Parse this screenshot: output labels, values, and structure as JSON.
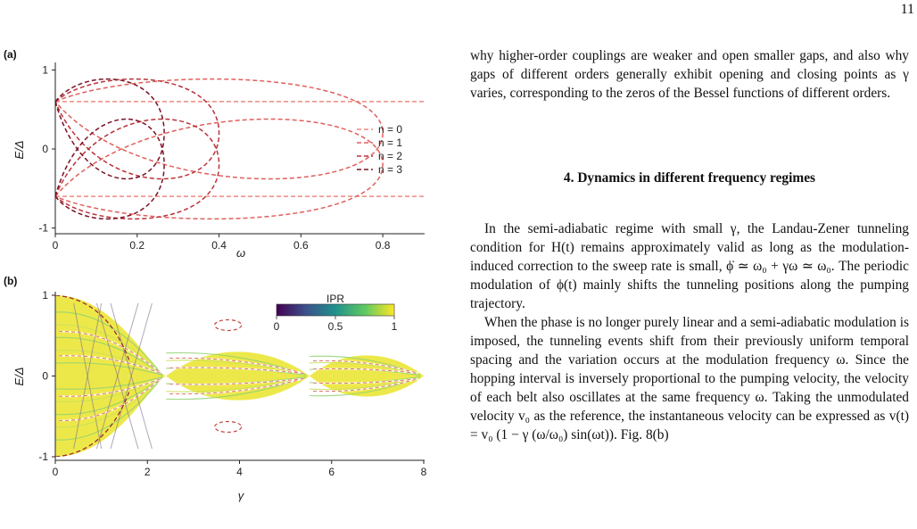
{
  "page": {
    "number": "11"
  },
  "figure": {
    "panel_a": {
      "label": "(a)",
      "chart_data": {
        "type": "line",
        "xlabel": "ω",
        "ylabel": "E/Δ",
        "xlim": [
          0,
          0.9
        ],
        "ylim": [
          -1.05,
          1.05
        ],
        "x_ticks": [
          "0",
          "0.2",
          "0.4",
          "0.6",
          "0.8"
        ],
        "y_ticks": [
          "-1",
          "0",
          "1"
        ],
        "legend_position": "right",
        "series": [
          {
            "name": "n = 0",
            "color": "#ee8a80",
            "curves": [
              {
                "x": [
                  0,
                  0.9
                ],
                "y": [
                  0.6,
                  0.6
                ]
              },
              {
                "x": [
                  0,
                  0.9
                ],
                "y": [
                  -0.6,
                  -0.6
                ]
              }
            ]
          },
          {
            "name": "n = 1",
            "color": "#e0605c",
            "loops": [
              {
                "x0": 0,
                "e0": 0.6,
                "tip": 0.8,
                "y_top": 0.95,
                "y_bot": -0.55
              },
              {
                "x0": 0,
                "e0": -0.6,
                "tip": 0.8,
                "y_top": 0.55,
                "y_bot": -0.95
              }
            ]
          },
          {
            "name": "n = 2",
            "color": "#b8333a",
            "loops": [
              {
                "x0": 0,
                "e0": 0.6,
                "tip": 0.4,
                "y_top": 0.95,
                "y_bot": -0.55
              },
              {
                "x0": 0,
                "e0": -0.6,
                "tip": 0.4,
                "y_top": 0.55,
                "y_bot": -0.95
              }
            ]
          },
          {
            "name": "n = 3",
            "color": "#7a1224",
            "loops": [
              {
                "x0": 0,
                "e0": 0.6,
                "tip": 0.266,
                "y_top": 0.95,
                "y_bot": -0.55
              },
              {
                "x0": 0,
                "e0": -0.6,
                "tip": 0.266,
                "y_top": 0.55,
                "y_bot": -0.95
              }
            ]
          }
        ]
      }
    },
    "panel_b": {
      "label": "(b)",
      "chart_data": {
        "type": "heatmap",
        "xlabel": "γ",
        "ylabel": "E/Δ",
        "xlim": [
          0,
          8
        ],
        "ylim": [
          -1,
          1
        ],
        "x_ticks": [
          "0",
          "2",
          "4",
          "6",
          "8"
        ],
        "y_ticks": [
          "-1",
          "0",
          "1"
        ],
        "colorbar": {
          "title": "IPR",
          "ticks": [
            "0",
            "0.5",
            "1"
          ],
          "range": [
            0,
            1
          ]
        },
        "envelope": {
          "gamma": [
            0,
            2.405,
            5.52,
            8
          ],
          "max_half_width": [
            1.0,
            0.0,
            0.0,
            0.35
          ]
        },
        "lobe_gaps": [
          {
            "gamma": [
              0,
              2.405
            ],
            "half_height": 1.0
          },
          {
            "gamma": [
              2.405,
              5.52
            ],
            "half_height": 0.4
          },
          {
            "gamma": [
              5.52,
              8.0
            ],
            "half_height": 0.34
          }
        ]
      }
    }
  },
  "text": {
    "para1": "why higher-order couplings are weaker and open smaller gaps, and also why gaps of different orders generally exhibit opening and closing points as γ varies, corresponding to the zeros of the Bessel functions of different orders.",
    "section_title": "4.  Dynamics in different frequency regimes",
    "para2": "In the semi-adiabatic regime with small γ, the Landau-Zener tunneling condition for H(t) remains approximately valid as long as the modulation-induced correction to the sweep rate is small, ϕ̇ ≃ ω₀ + γω ≃ ω₀. The periodic modulation of ϕ(t) mainly shifts the tunneling positions along the pumping trajectory.",
    "para3": "When the phase is no longer purely linear and a semi-adiabatic modulation is imposed, the tunneling events shift from their previously uniform temporal spacing and the variation occurs at the modulation frequency ω. Since the hopping interval is inversely proportional to the pumping velocity, the velocity of each belt also oscillates at the same frequency ω. Taking the unmodulated velocity v₀ as the reference, the instantaneous velocity can be expressed as v(t) = v₀ (1 − γ (ω/ω₀) sin(ωt)). Fig. 8(b)"
  }
}
